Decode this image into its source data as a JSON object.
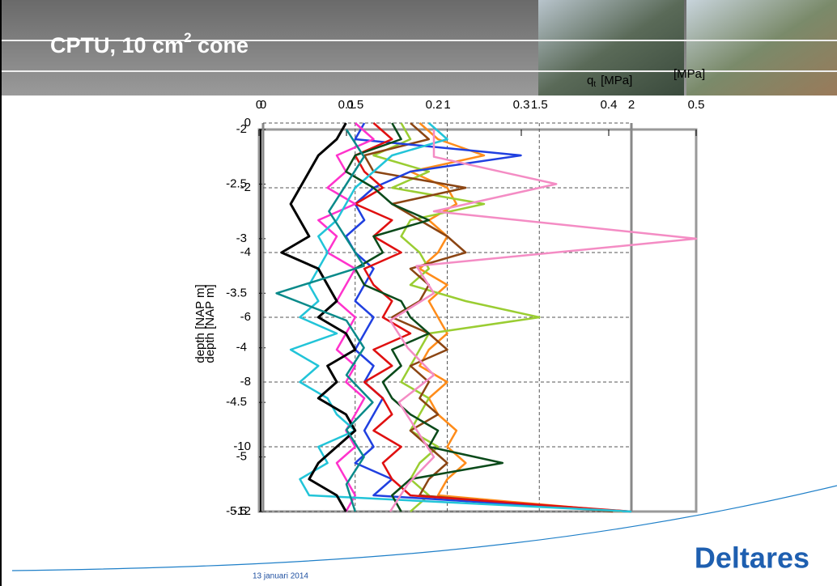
{
  "slide": {
    "title": "CPTU, 10 cm",
    "title_sup": "2",
    "title_end": " cone",
    "date": "13 januari 2014",
    "logo": "Deltares"
  },
  "chart_data": [
    {
      "type": "line",
      "x_label": "[MPa]",
      "y_label": "depth [NAP m]",
      "xlim": [
        0,
        0.5
      ],
      "xticks": [
        0,
        0.1,
        0.2,
        0.3,
        0.4,
        0.5
      ],
      "ylim": [
        -5.5,
        -2
      ],
      "yticks": [
        -2,
        -2.5,
        -3,
        -3.5,
        -4,
        -4.5,
        -5,
        -5.5
      ],
      "depth": [
        -2,
        -2.25,
        -2.5,
        -2.75,
        -3,
        -3.25,
        -3.5,
        -3.75,
        -4,
        -4.25,
        -4.5,
        -4.75,
        -5,
        -5.25,
        -5.5
      ],
      "series": [
        {
          "color": "#f48cc4",
          "values": [
            0.2,
            0.2,
            0.34,
            0.2,
            0.5,
            0.18,
            0.2,
            0.15,
            0.17,
            0.2,
            0.16,
            0.18,
            0.2,
            0.17,
            0.15
          ]
        },
        {
          "color": "#0a8a8a",
          "values": [
            0.1,
            0.12,
            0.1,
            0.08,
            0.1,
            0.12,
            0.02,
            0.1,
            0.12,
            0.1,
            0.13,
            0.1,
            0.12,
            0.1,
            0.11
          ]
        }
      ]
    },
    {
      "type": "line",
      "x_label": "q",
      "x_label_sub": "t",
      "x_label_unit": "[MPa]",
      "y_label": "depth [NAP m]",
      "xlim": [
        0,
        2
      ],
      "xticks": [
        0,
        0.5,
        1,
        1.5,
        2
      ],
      "ylim": [
        -12,
        0
      ],
      "yticks": [
        0,
        -2,
        -4,
        -6,
        -8,
        -10,
        -12
      ],
      "grid": true,
      "depth": [
        0,
        -0.5,
        -1,
        -1.5,
        -2,
        -2.5,
        -3,
        -3.5,
        -4,
        -4.5,
        -5,
        -5.5,
        -6,
        -6.5,
        -7,
        -7.5,
        -8,
        -8.5,
        -9,
        -9.5,
        -10,
        -10.5,
        -11,
        -11.5,
        -12
      ],
      "series": [
        {
          "color": "#ff8c1a",
          "values": [
            0.85,
            0.95,
            1.2,
            0.8,
            1.0,
            1.05,
            0.9,
            1.0,
            0.95,
            0.85,
            1.0,
            0.9,
            0.95,
            1.0,
            0.9,
            0.85,
            1.0,
            0.9,
            0.95,
            1.05,
            1.0,
            1.1,
            1.0,
            0.95,
            1.95
          ]
        },
        {
          "color": "#9acd32",
          "values": [
            0.75,
            0.8,
            0.6,
            0.9,
            0.7,
            1.2,
            0.8,
            0.75,
            0.85,
            0.9,
            0.8,
            1.1,
            1.5,
            0.9,
            0.85,
            0.8,
            0.75,
            0.9,
            0.85,
            0.8,
            0.95,
            0.85,
            0.8,
            0.9,
            0.8
          ]
        },
        {
          "color": "#8b4513",
          "values": [
            0.8,
            0.9,
            0.55,
            0.6,
            1.1,
            0.7,
            0.85,
            1.0,
            1.1,
            0.8,
            0.9,
            0.85,
            0.7,
            0.9,
            1.0,
            0.8,
            0.9,
            0.85,
            0.95,
            0.8,
            0.9,
            1.0,
            0.9,
            0.85,
            1.9
          ]
        },
        {
          "color": "#2040e0",
          "values": [
            0.55,
            0.5,
            1.4,
            0.8,
            0.6,
            0.5,
            0.55,
            0.45,
            0.5,
            0.6,
            0.55,
            0.5,
            0.6,
            0.55,
            0.5,
            0.6,
            0.55,
            0.65,
            0.6,
            0.55,
            0.6,
            0.5,
            0.7,
            0.6,
            2.0
          ]
        },
        {
          "color": "#e01010",
          "values": [
            0.6,
            0.7,
            0.5,
            0.55,
            0.65,
            0.5,
            0.7,
            0.6,
            0.75,
            0.55,
            0.6,
            0.7,
            0.65,
            0.8,
            0.6,
            0.7,
            0.55,
            0.65,
            0.7,
            0.6,
            0.75,
            0.65,
            0.7,
            0.8,
            2.0
          ]
        },
        {
          "color": "#ff33cc",
          "values": [
            0.5,
            0.6,
            0.4,
            0.45,
            0.35,
            0.5,
            0.3,
            0.4,
            0.35,
            0.5,
            0.45,
            0.4,
            0.5,
            0.45,
            0.4,
            0.5,
            0.45,
            0.55,
            0.5,
            0.45,
            0.5,
            0.4,
            0.45,
            0.5,
            0.45
          ]
        },
        {
          "color": "#22c4d8",
          "values": [
            0.9,
            1.0,
            0.7,
            0.6,
            0.5,
            0.45,
            0.4,
            0.3,
            0.35,
            0.3,
            0.25,
            0.3,
            0.2,
            0.4,
            0.15,
            0.3,
            0.2,
            0.35,
            0.4,
            0.5,
            0.3,
            0.35,
            0.2,
            0.25,
            2.0
          ]
        },
        {
          "color": "#0a4a1a",
          "values": [
            0.7,
            0.75,
            0.5,
            0.45,
            0.6,
            0.7,
            0.9,
            0.6,
            0.65,
            0.5,
            0.55,
            0.75,
            0.8,
            0.9,
            0.7,
            0.75,
            0.65,
            0.7,
            0.8,
            0.95,
            0.9,
            1.3,
            0.8,
            0.7,
            0.75
          ]
        },
        {
          "color": "#000000",
          "values": [
            0.45,
            0.4,
            0.3,
            0.25,
            0.2,
            0.15,
            0.2,
            0.25,
            0.1,
            0.3,
            0.35,
            0.4,
            0.3,
            0.45,
            0.5,
            0.35,
            0.4,
            0.3,
            0.45,
            0.5,
            0.4,
            0.3,
            0.25,
            0.4,
            0.45
          ]
        }
      ]
    }
  ]
}
